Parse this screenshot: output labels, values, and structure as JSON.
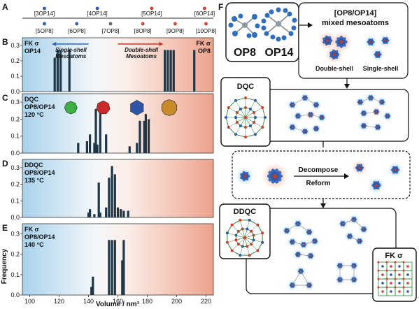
{
  "colors": {
    "bar": "#1d3748",
    "blue_bg": "#a9d2ec",
    "red_bg": "#eda38c",
    "op14_marker": "#2e5aa8",
    "op8_marker": "#d93a2f",
    "mid_marker": "#666666",
    "arrow_blue": "#2f66b4",
    "arrow_red": "#c9392e"
  },
  "panelA": {
    "letter": "A",
    "top_markers": [
      {
        "label": "[3OP14]",
        "v": 110,
        "color": "op14"
      },
      {
        "label": "[4OP14]",
        "v": 146,
        "color": "op14"
      },
      {
        "label": "[5OP14]",
        "v": 183,
        "color": "op8"
      },
      {
        "label": "[6OP14]",
        "v": 219,
        "color": "op8"
      }
    ],
    "bottom_markers": [
      {
        "label": "[5OP8]",
        "v": 110,
        "color": "op14"
      },
      {
        "label": "[6OP8]",
        "v": 132,
        "color": "op14"
      },
      {
        "label": "[7OP8]",
        "v": 155,
        "color": "mid"
      },
      {
        "label": "[8OP8]",
        "v": 177,
        "color": "op8"
      },
      {
        "label": "[9OP8]",
        "v": 199,
        "color": "op8"
      },
      {
        "label": "[10OP8]",
        "v": 220,
        "color": "op8"
      }
    ]
  },
  "arrows": {
    "single": "Single-shell\nMesoatoms",
    "double": "Double-shell\nMesoatoms"
  },
  "axes": {
    "xlabel": "Volume / nm³",
    "ylabel": "Frequency",
    "xlim": [
      95,
      225
    ],
    "xticks": [
      "100",
      "120",
      "140",
      "160",
      "180",
      "200",
      "220"
    ],
    "yticks": [
      "0.0",
      "0.1",
      "0.2",
      "0.3"
    ],
    "ylim": [
      0,
      0.35
    ]
  },
  "chart_data": [
    {
      "type": "bar",
      "letter": "B",
      "caption": [
        "FK σ",
        "OP14"
      ],
      "caption_right": [
        "FK σ",
        "OP8"
      ],
      "x": [
        117,
        119,
        121,
        127,
        192,
        194,
        196,
        198,
        212
      ],
      "values": [
        0.22,
        0.27,
        0.27,
        0.27,
        0.27,
        0.27,
        0.27,
        0.27,
        0.27
      ]
    },
    {
      "type": "bar",
      "letter": "C",
      "caption": [
        "DQC",
        "OP8/OP14",
        "120 °C"
      ],
      "x": [
        133,
        139,
        141,
        144,
        145,
        146,
        148,
        152,
        168,
        173,
        175,
        178,
        179,
        181
      ],
      "values": [
        0.06,
        0.07,
        0.11,
        0.06,
        0.26,
        0.05,
        0.24,
        0.11,
        0.04,
        0.06,
        0.19,
        0.19,
        0.23,
        0.2
      ]
    },
    {
      "type": "bar",
      "letter": "D",
      "caption": [
        "DDQC",
        "OP8/OP14",
        "135 °C"
      ],
      "x": [
        140,
        141,
        144,
        147,
        148,
        152,
        154,
        156,
        158,
        160,
        162,
        164,
        167
      ],
      "values": [
        0.03,
        0.05,
        0.02,
        0.21,
        0.03,
        0.06,
        0.24,
        0.31,
        0.26,
        0.06,
        0.05,
        0.04,
        0.04
      ]
    },
    {
      "type": "bar",
      "letter": "E",
      "caption": [
        "FK σ",
        "OP8/OP14",
        "140 °C"
      ],
      "x": [
        142,
        143,
        154,
        156,
        158,
        163,
        164
      ],
      "values": [
        0.04,
        0.09,
        0.27,
        0.27,
        0.27,
        0.17,
        0.27
      ]
    }
  ],
  "panelF": {
    "letter": "F",
    "op8": "OP8",
    "op14": "OP14",
    "mixed_title": "[OP8/OP14]\nmixed mesoatoms",
    "double_shell": "Double-shell",
    "single_shell": "Single-shell",
    "dqc": "DQC",
    "decompose": "Decompose",
    "reform": "Reform",
    "ddqc": "DDQC",
    "fks": "FK σ"
  }
}
